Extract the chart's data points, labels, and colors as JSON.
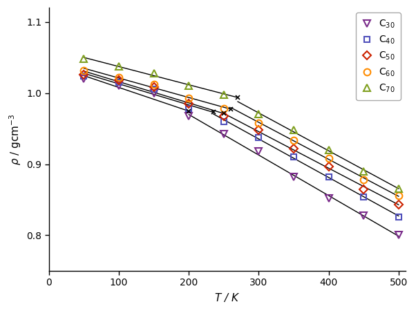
{
  "series": [
    {
      "label": "C$_{30}$",
      "color": "#7B2D8B",
      "marker": "v",
      "markersize": 7,
      "T": [
        50,
        100,
        150,
        200,
        250,
        300,
        350,
        400,
        450,
        500
      ],
      "rho": [
        1.02,
        1.01,
        1.0,
        0.968,
        0.942,
        0.918,
        0.882,
        0.852,
        0.828,
        0.8
      ],
      "kink_T": 200,
      "kink_rho": 0.968
    },
    {
      "label": "C$_{40}$",
      "color": "#5050BB",
      "marker": "s",
      "markersize": 6,
      "T": [
        50,
        100,
        150,
        200,
        250,
        300,
        350,
        400,
        450,
        500
      ],
      "rho": [
        1.024,
        1.015,
        1.005,
        0.978,
        0.96,
        0.937,
        0.91,
        0.882,
        0.854,
        0.826
      ],
      "kink_T": 235,
      "kink_rho": 0.972
    },
    {
      "label": "C$_{50}$",
      "color": "#CC2200",
      "marker": "D",
      "markersize": 6,
      "T": [
        50,
        100,
        150,
        200,
        250,
        300,
        350,
        400,
        450,
        500
      ],
      "rho": [
        1.026,
        1.018,
        1.008,
        0.985,
        0.968,
        0.948,
        0.922,
        0.897,
        0.865,
        0.843
      ],
      "kink_T": 250,
      "kink_rho": 0.976
    },
    {
      "label": "C$_{60}$",
      "color": "#FF8C00",
      "marker": "o",
      "markersize": 7,
      "T": [
        50,
        100,
        150,
        200,
        250,
        300,
        350,
        400,
        450,
        500
      ],
      "rho": [
        1.032,
        1.022,
        1.012,
        0.993,
        0.978,
        0.958,
        0.934,
        0.908,
        0.878,
        0.856
      ],
      "kink_T": 260,
      "kink_rho": 0.98
    },
    {
      "label": "C$_{70}$",
      "color": "#80A020",
      "marker": "^",
      "markersize": 7,
      "T": [
        50,
        100,
        150,
        200,
        250,
        300,
        350,
        400,
        450,
        500
      ],
      "rho": [
        1.048,
        1.038,
        1.028,
        1.01,
        0.998,
        0.97,
        0.948,
        0.92,
        0.89,
        0.866
      ],
      "kink_T": 270,
      "kink_rho": 0.995
    }
  ],
  "xlabel": "$T$ / K",
  "ylabel": "$\\rho$ / gcm$^{-3}$",
  "xlim": [
    0,
    510
  ],
  "ylim": [
    0.75,
    1.12
  ],
  "xticks": [
    0,
    100,
    200,
    300,
    400,
    500
  ],
  "yticks": [
    0.8,
    0.9,
    1.0,
    1.1
  ],
  "line_color": "black",
  "line_width": 1.0,
  "bg_color": "#ffffff",
  "legend_loc": "upper right"
}
